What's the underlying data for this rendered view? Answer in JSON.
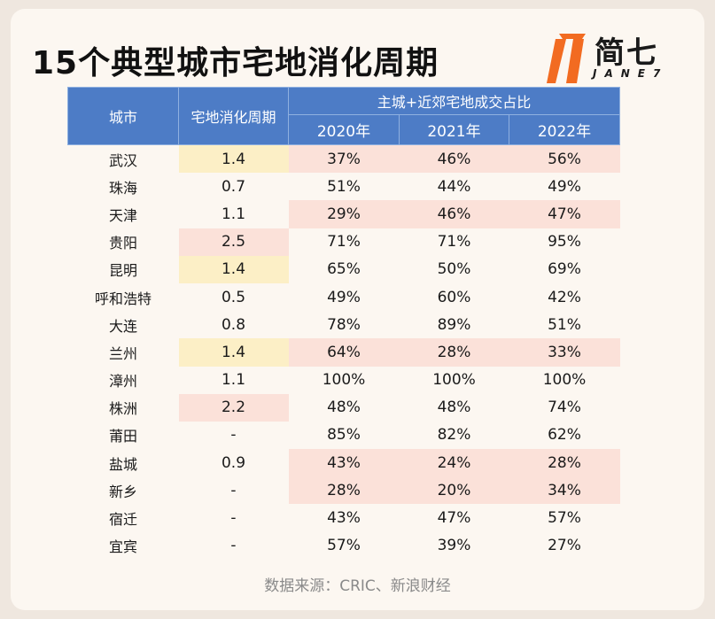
{
  "title": "15个典型城市宅地消化周期",
  "logo": {
    "name": "简七",
    "sub": "JANE7"
  },
  "source": "数据来源：CRIC、新浪财经",
  "colors": {
    "header": "#4d7cc6",
    "highlight_yellow": "#fcefc6",
    "highlight_pink": "#fbe1d9",
    "logo_orange": "#f26b21"
  },
  "chart_data": {
    "type": "table",
    "headers": {
      "city": "城市",
      "cycle": "宅地消化周期",
      "group": "主城+近郊宅地成交占比",
      "years": [
        "2020年",
        "2021年",
        "2022年"
      ]
    },
    "rows": [
      {
        "city": "武汉",
        "cycle": "1.4",
        "v2020": "37%",
        "v2021": "46%",
        "v2022": "56%"
      },
      {
        "city": "珠海",
        "cycle": "0.7",
        "v2020": "51%",
        "v2021": "44%",
        "v2022": "49%"
      },
      {
        "city": "天津",
        "cycle": "1.1",
        "v2020": "29%",
        "v2021": "46%",
        "v2022": "47%"
      },
      {
        "city": "贵阳",
        "cycle": "2.5",
        "v2020": "71%",
        "v2021": "71%",
        "v2022": "95%"
      },
      {
        "city": "昆明",
        "cycle": "1.4",
        "v2020": "65%",
        "v2021": "50%",
        "v2022": "69%"
      },
      {
        "city": "呼和浩特",
        "cycle": "0.5",
        "v2020": "49%",
        "v2021": "60%",
        "v2022": "42%"
      },
      {
        "city": "大连",
        "cycle": "0.8",
        "v2020": "78%",
        "v2021": "89%",
        "v2022": "51%"
      },
      {
        "city": "兰州",
        "cycle": "1.4",
        "v2020": "64%",
        "v2021": "28%",
        "v2022": "33%"
      },
      {
        "city": "漳州",
        "cycle": "1.1",
        "v2020": "100%",
        "v2021": "100%",
        "v2022": "100%"
      },
      {
        "city": "株洲",
        "cycle": "2.2",
        "v2020": "48%",
        "v2021": "48%",
        "v2022": "74%"
      },
      {
        "city": "莆田",
        "cycle": "-",
        "v2020": "85%",
        "v2021": "82%",
        "v2022": "62%"
      },
      {
        "city": "盐城",
        "cycle": "0.9",
        "v2020": "43%",
        "v2021": "24%",
        "v2022": "28%"
      },
      {
        "city": "新乡",
        "cycle": "-",
        "v2020": "28%",
        "v2021": "20%",
        "v2022": "34%"
      },
      {
        "city": "宿迁",
        "cycle": "-",
        "v2020": "43%",
        "v2021": "47%",
        "v2022": "57%"
      },
      {
        "city": "宜宾",
        "cycle": "-",
        "v2020": "57%",
        "v2021": "39%",
        "v2022": "27%"
      }
    ],
    "highlights": {
      "cycle_yellow": [
        "武汉",
        "昆明",
        "兰州"
      ],
      "cycle_pink": [
        "贵阳",
        "株洲"
      ],
      "share_pink": [
        "武汉",
        "天津",
        "兰州",
        "盐城",
        "新乡"
      ]
    }
  }
}
